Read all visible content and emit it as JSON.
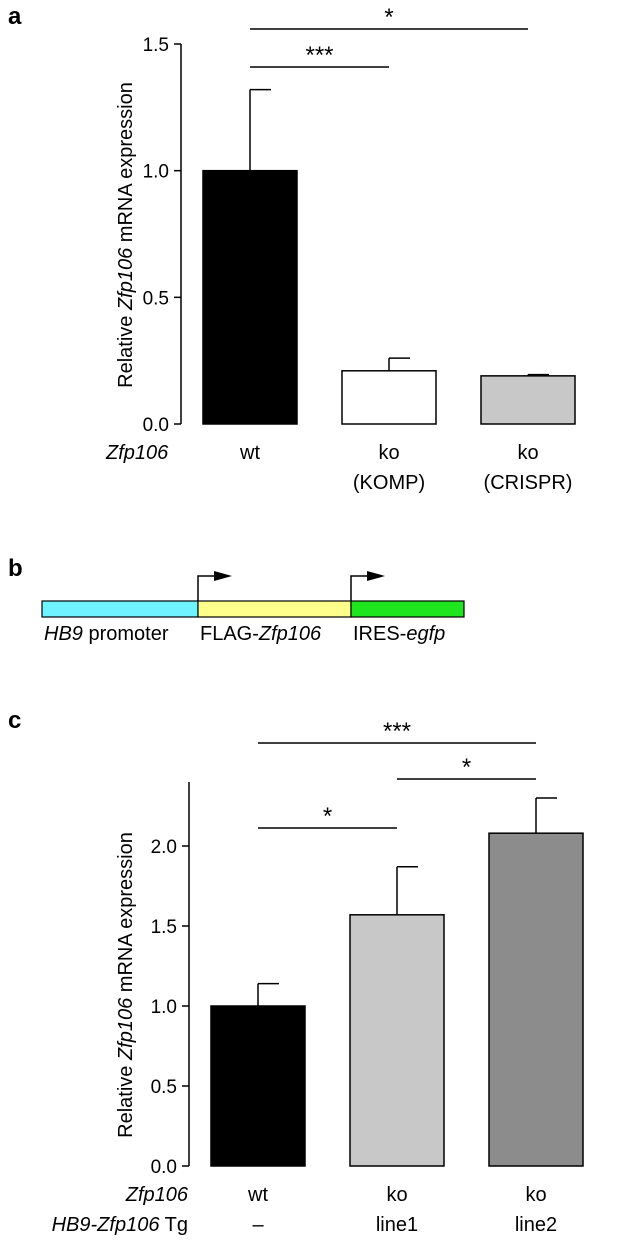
{
  "panels": {
    "a": "a",
    "b": "b",
    "c": "c"
  },
  "chart_data": [
    {
      "type": "bar",
      "panel": "a",
      "ylabel_pre": "Relative ",
      "ylabel_gene": "Zfp106",
      "ylabel_post": " mRNA expression",
      "ylim": [
        0,
        1.5
      ],
      "yticks": [
        "0.0",
        "0.5",
        "1.0",
        "1.5"
      ],
      "row_label": "Zfp106",
      "categories": [
        {
          "line1": "wt",
          "line2": ""
        },
        {
          "line1": "ko",
          "line2": "(KOMP)"
        },
        {
          "line1": "ko",
          "line2": "(CRISPR)"
        }
      ],
      "values": [
        1.0,
        0.21,
        0.19
      ],
      "errors": [
        0.32,
        0.05,
        0.005
      ],
      "colors": [
        "#000000",
        "#ffffff",
        "#c8c8c8"
      ],
      "significance": [
        {
          "from": 0,
          "to": 1,
          "label": "***"
        },
        {
          "from": 0,
          "to": 2,
          "label": "*"
        }
      ]
    },
    {
      "type": "bar",
      "panel": "c",
      "ylabel_pre": "Relative ",
      "ylabel_gene": "Zfp106",
      "ylabel_post": " mRNA expression",
      "ylim": [
        0,
        2.4
      ],
      "yticks": [
        "0.0",
        "0.5",
        "1.0",
        "1.5",
        "2.0"
      ],
      "row_labels": [
        {
          "ital": "Zfp106",
          "rest": ""
        },
        {
          "ital": "HB9-Zfp106",
          "rest": " Tg"
        }
      ],
      "categories": [
        {
          "line1": "wt",
          "line2": "–"
        },
        {
          "line1": "ko",
          "line2": "line1"
        },
        {
          "line1": "ko",
          "line2": "line2"
        }
      ],
      "values": [
        1.0,
        1.57,
        2.08
      ],
      "errors": [
        0.14,
        0.3,
        0.22
      ],
      "colors": [
        "#000000",
        "#c8c8c8",
        "#8c8c8c"
      ],
      "significance": [
        {
          "from": 0,
          "to": 1,
          "label": "*"
        },
        {
          "from": 0,
          "to": 2,
          "label": "***"
        },
        {
          "from": 1,
          "to": 2,
          "label": "*"
        }
      ]
    }
  ],
  "construct": {
    "segments": [
      {
        "color": "#6ff4ff",
        "ital": "HB9",
        "rest": " promoter",
        "italFirst": true
      },
      {
        "color": "#ffff8c",
        "ital": "Zfp106",
        "rest": "FLAG-",
        "italFirst": false
      },
      {
        "color": "#1ee51e",
        "ital": "egfp",
        "rest": "IRES-",
        "italFirst": false
      }
    ]
  }
}
